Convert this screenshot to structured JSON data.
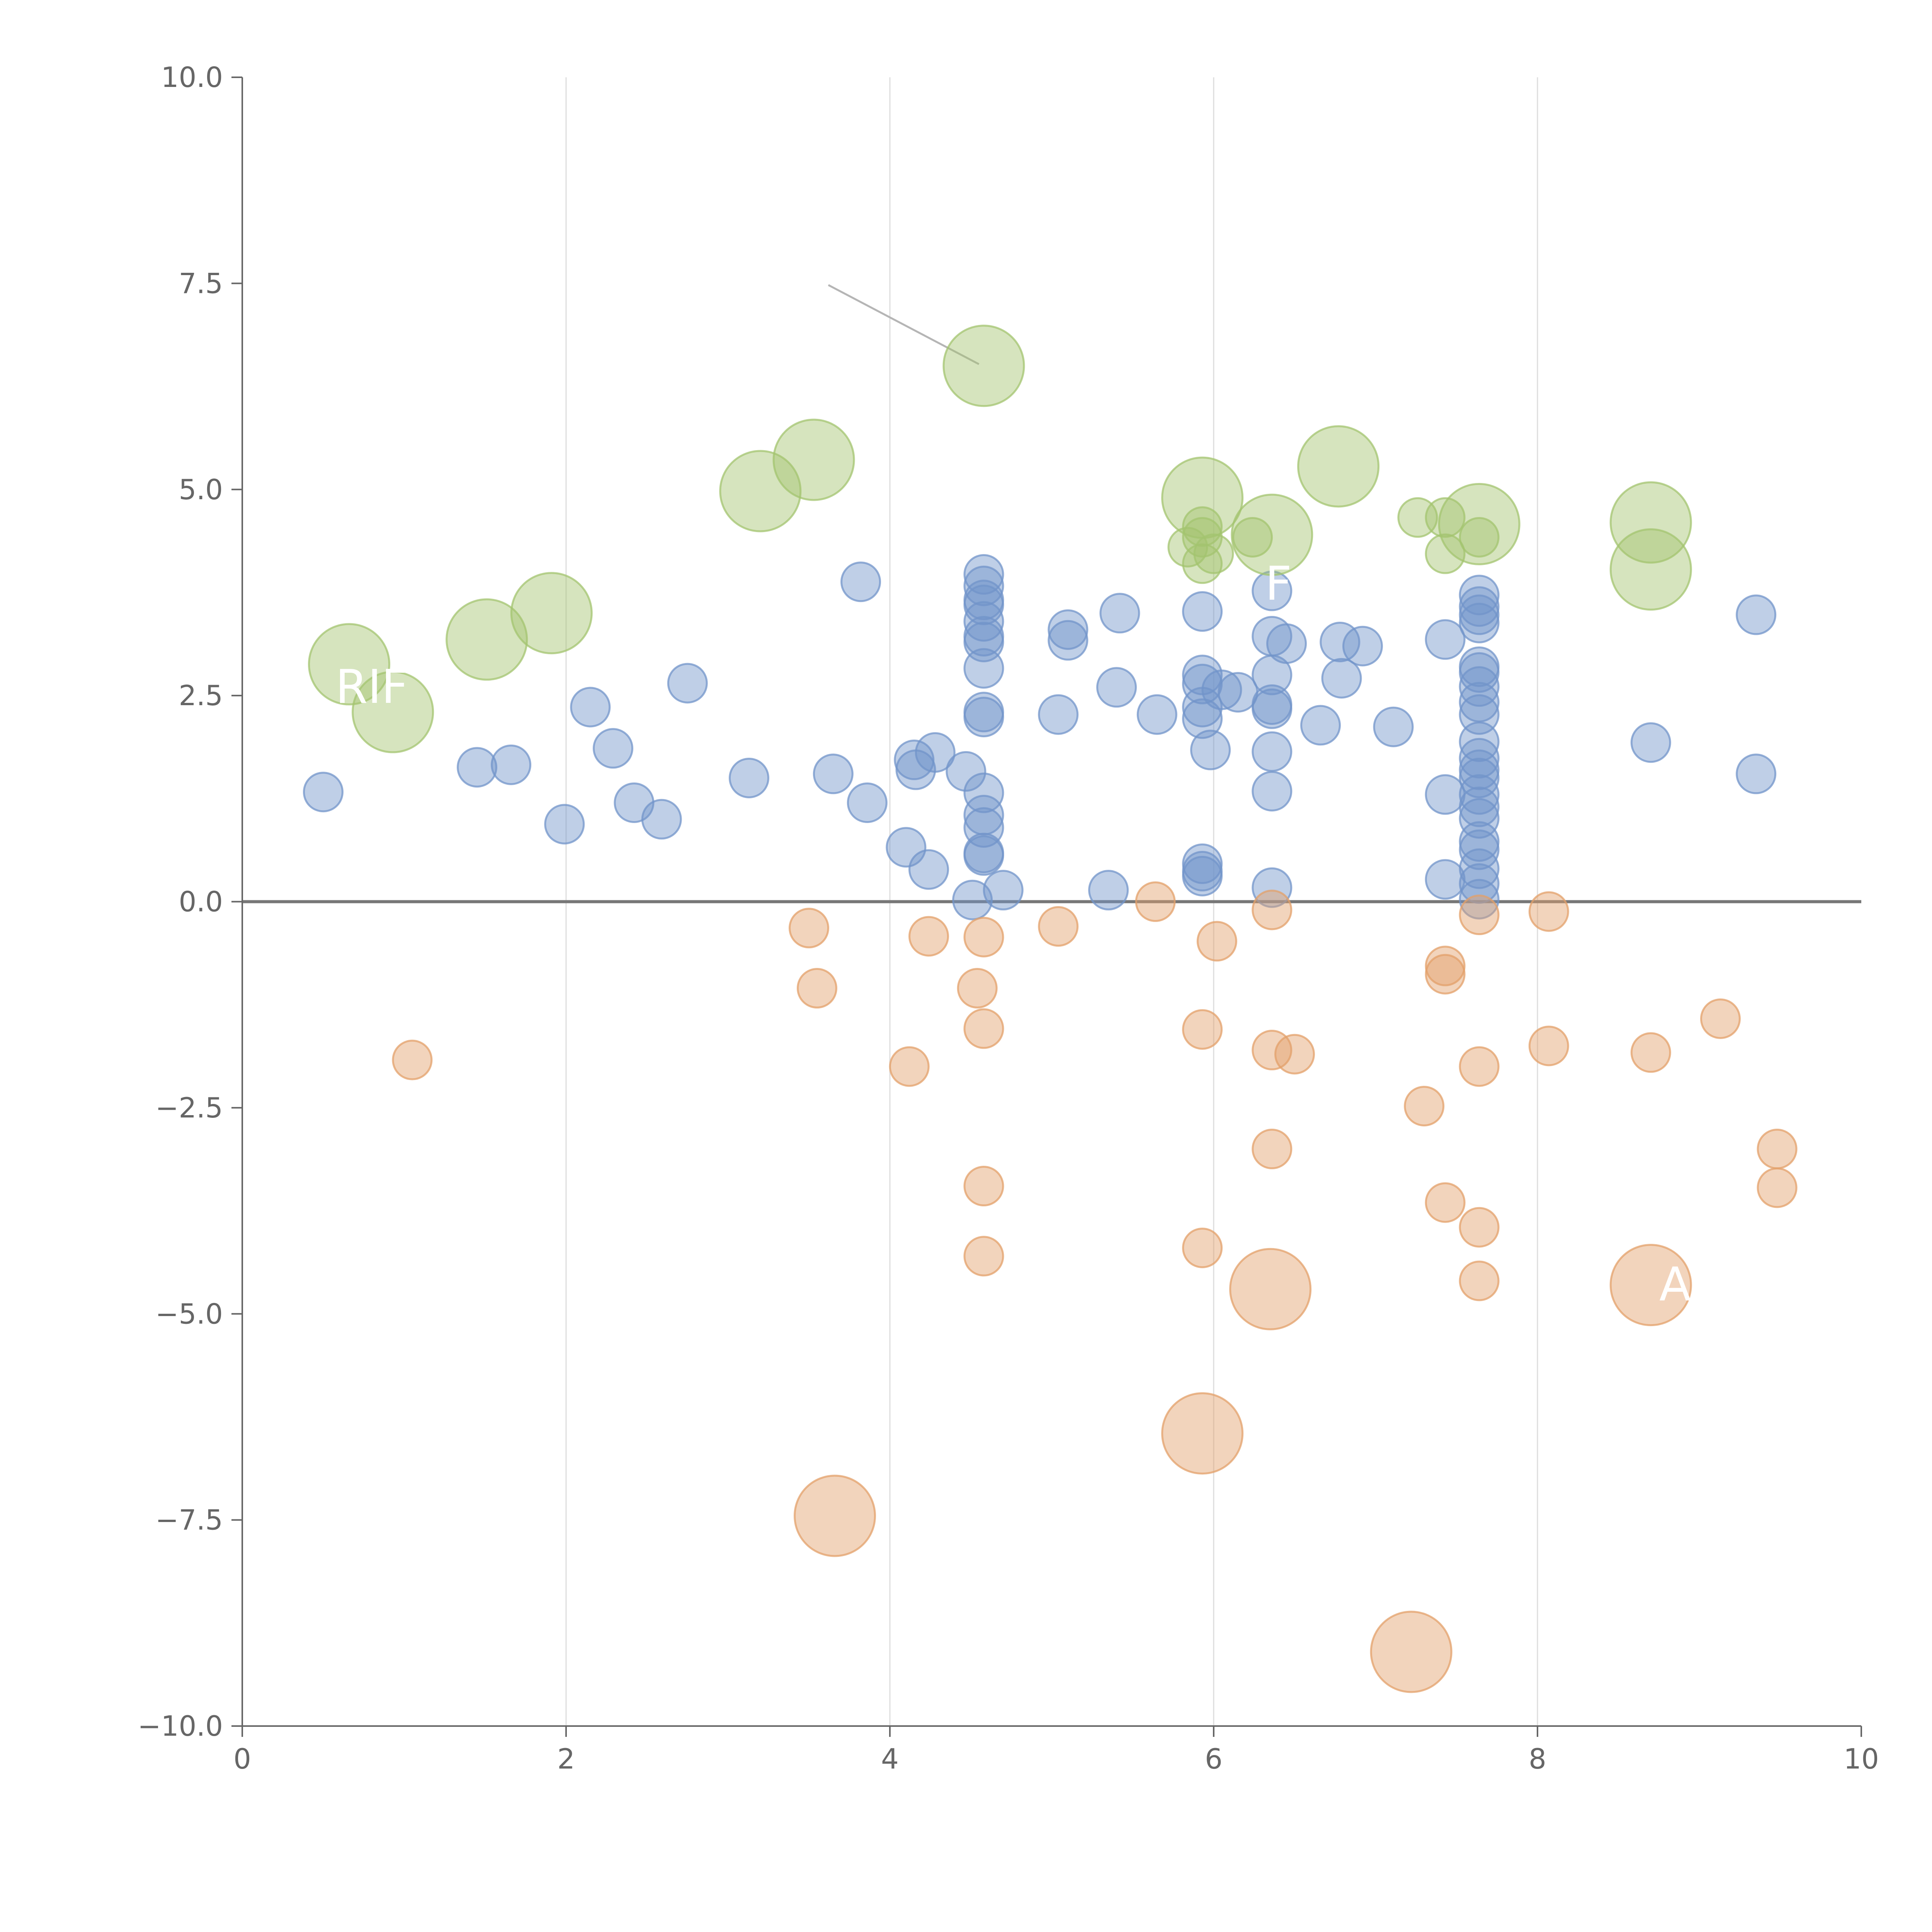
{
  "chart_data": {
    "type": "scatter",
    "title": "",
    "xlabel": "",
    "ylabel": "",
    "xlim": [
      0,
      10
    ],
    "ylim": [
      -10,
      10
    ],
    "x_ticks": [
      0,
      2,
      4,
      6,
      8,
      10
    ],
    "y_ticks": [
      10,
      7.5,
      5,
      2.5,
      0,
      -2.5,
      -5,
      -7.5,
      -10
    ],
    "x_tick_labels": [
      "0",
      "2",
      "4",
      "6",
      "8",
      "10"
    ],
    "y_tick_labels": [
      "10.0",
      "7.5",
      "5.0",
      "2.5",
      "0.0",
      "−2.5",
      "−5.0",
      "−7.5",
      "−10.0"
    ],
    "grid": "vertical",
    "zero_line": true,
    "legend": "none",
    "colors": {
      "blue": "#7294c9",
      "green": "#a3c46f",
      "orange": "#e3a06a",
      "axis": "#666666",
      "grid": "#dddddd",
      "zero_line": "#777777",
      "annotation_line": "#b5b5b5"
    },
    "size_scale": {
      "small": 1,
      "large": 2
    },
    "series": [
      {
        "name": "blue",
        "color": "#7294c9",
        "points": [
          {
            "x": 0.5,
            "y": 1.33,
            "s": 1
          },
          {
            "x": 1.45,
            "y": 1.63,
            "s": 1
          },
          {
            "x": 1.66,
            "y": 1.66,
            "s": 1
          },
          {
            "x": 1.99,
            "y": 0.94,
            "s": 1
          },
          {
            "x": 2.15,
            "y": 2.36,
            "s": 1
          },
          {
            "x": 2.29,
            "y": 1.86,
            "s": 1
          },
          {
            "x": 2.42,
            "y": 1.2,
            "s": 1
          },
          {
            "x": 2.59,
            "y": 1.0,
            "s": 1
          },
          {
            "x": 2.75,
            "y": 2.65,
            "s": 1
          },
          {
            "x": 3.13,
            "y": 1.5,
            "s": 1
          },
          {
            "x": 3.65,
            "y": 1.55,
            "s": 1
          },
          {
            "x": 3.82,
            "y": 3.88,
            "s": 1
          },
          {
            "x": 3.86,
            "y": 1.2,
            "s": 1
          },
          {
            "x": 4.1,
            "y": 0.66,
            "s": 1
          },
          {
            "x": 4.15,
            "y": 1.72,
            "s": 1
          },
          {
            "x": 4.16,
            "y": 1.6,
            "s": 1
          },
          {
            "x": 4.24,
            "y": 0.39,
            "s": 1
          },
          {
            "x": 4.28,
            "y": 1.81,
            "s": 1
          },
          {
            "x": 4.47,
            "y": 1.58,
            "s": 1
          },
          {
            "x": 4.51,
            "y": 0.02,
            "s": 1
          },
          {
            "x": 4.58,
            "y": 3.97,
            "s": 1
          },
          {
            "x": 4.58,
            "y": 3.83,
            "s": 1
          },
          {
            "x": 4.58,
            "y": 3.66,
            "s": 1
          },
          {
            "x": 4.58,
            "y": 3.6,
            "s": 1
          },
          {
            "x": 4.58,
            "y": 3.4,
            "s": 1
          },
          {
            "x": 4.58,
            "y": 3.22,
            "s": 1
          },
          {
            "x": 4.58,
            "y": 3.15,
            "s": 1
          },
          {
            "x": 4.58,
            "y": 2.83,
            "s": 1
          },
          {
            "x": 4.58,
            "y": 2.3,
            "s": 1
          },
          {
            "x": 4.58,
            "y": 2.24,
            "s": 1
          },
          {
            "x": 4.58,
            "y": 1.32,
            "s": 1
          },
          {
            "x": 4.58,
            "y": 1.05,
            "s": 1
          },
          {
            "x": 4.58,
            "y": 0.9,
            "s": 1
          },
          {
            "x": 4.58,
            "y": 0.59,
            "s": 1
          },
          {
            "x": 4.58,
            "y": 0.56,
            "s": 1
          },
          {
            "x": 4.7,
            "y": 0.14,
            "s": 1
          },
          {
            "x": 5.04,
            "y": 2.27,
            "s": 1
          },
          {
            "x": 5.1,
            "y": 3.3,
            "s": 1
          },
          {
            "x": 5.1,
            "y": 3.17,
            "s": 1
          },
          {
            "x": 5.35,
            "y": 0.14,
            "s": 1
          },
          {
            "x": 5.4,
            "y": 2.6,
            "s": 1
          },
          {
            "x": 5.42,
            "y": 3.5,
            "s": 1
          },
          {
            "x": 5.65,
            "y": 2.27,
            "s": 1
          },
          {
            "x": 5.93,
            "y": 3.52,
            "s": 1
          },
          {
            "x": 5.93,
            "y": 2.75,
            "s": 1
          },
          {
            "x": 5.93,
            "y": 2.64,
            "s": 1
          },
          {
            "x": 5.93,
            "y": 2.36,
            "s": 1
          },
          {
            "x": 5.93,
            "y": 2.22,
            "s": 1
          },
          {
            "x": 5.93,
            "y": 0.46,
            "s": 1
          },
          {
            "x": 5.93,
            "y": 0.37,
            "s": 1
          },
          {
            "x": 5.93,
            "y": 0.31,
            "s": 1
          },
          {
            "x": 5.98,
            "y": 1.84,
            "s": 1
          },
          {
            "x": 6.05,
            "y": 2.57,
            "s": 1
          },
          {
            "x": 6.15,
            "y": 2.54,
            "s": 1
          },
          {
            "x": 6.36,
            "y": 3.77,
            "s": 1
          },
          {
            "x": 6.36,
            "y": 3.22,
            "s": 1
          },
          {
            "x": 6.36,
            "y": 2.75,
            "s": 1
          },
          {
            "x": 6.36,
            "y": 2.39,
            "s": 1
          },
          {
            "x": 6.36,
            "y": 2.34,
            "s": 1
          },
          {
            "x": 6.36,
            "y": 1.82,
            "s": 1
          },
          {
            "x": 6.36,
            "y": 1.34,
            "s": 1
          },
          {
            "x": 6.36,
            "y": 0.17,
            "s": 1
          },
          {
            "x": 6.45,
            "y": 3.13,
            "s": 1
          },
          {
            "x": 6.66,
            "y": 2.14,
            "s": 1
          },
          {
            "x": 6.78,
            "y": 3.15,
            "s": 1
          },
          {
            "x": 6.79,
            "y": 2.71,
            "s": 1
          },
          {
            "x": 6.92,
            "y": 3.1,
            "s": 1
          },
          {
            "x": 7.11,
            "y": 2.12,
            "s": 1
          },
          {
            "x": 7.43,
            "y": 3.18,
            "s": 1
          },
          {
            "x": 7.43,
            "y": 1.3,
            "s": 1
          },
          {
            "x": 7.43,
            "y": 0.27,
            "s": 1
          },
          {
            "x": 7.64,
            "y": 3.72,
            "s": 1
          },
          {
            "x": 7.64,
            "y": 3.58,
            "s": 1
          },
          {
            "x": 7.64,
            "y": 3.48,
            "s": 1
          },
          {
            "x": 7.64,
            "y": 3.38,
            "s": 1
          },
          {
            "x": 7.64,
            "y": 2.85,
            "s": 1
          },
          {
            "x": 7.64,
            "y": 2.78,
            "s": 1
          },
          {
            "x": 7.64,
            "y": 2.61,
            "s": 1
          },
          {
            "x": 7.64,
            "y": 2.42,
            "s": 1
          },
          {
            "x": 7.64,
            "y": 2.27,
            "s": 1
          },
          {
            "x": 7.64,
            "y": 1.94,
            "s": 1
          },
          {
            "x": 7.64,
            "y": 1.74,
            "s": 1
          },
          {
            "x": 7.64,
            "y": 1.6,
            "s": 1
          },
          {
            "x": 7.64,
            "y": 1.5,
            "s": 1
          },
          {
            "x": 7.64,
            "y": 1.3,
            "s": 1
          },
          {
            "x": 7.64,
            "y": 1.15,
            "s": 1
          },
          {
            "x": 7.64,
            "y": 1.01,
            "s": 1
          },
          {
            "x": 7.64,
            "y": 0.73,
            "s": 1
          },
          {
            "x": 7.64,
            "y": 0.63,
            "s": 1
          },
          {
            "x": 7.64,
            "y": 0.4,
            "s": 1
          },
          {
            "x": 7.64,
            "y": 0.22,
            "s": 1
          },
          {
            "x": 7.64,
            "y": 0.03,
            "s": 1
          },
          {
            "x": 8.7,
            "y": 1.93,
            "s": 1
          },
          {
            "x": 9.35,
            "y": 3.48,
            "s": 1
          },
          {
            "x": 9.35,
            "y": 1.55,
            "s": 1
          }
        ]
      },
      {
        "name": "green",
        "color": "#a3c46f",
        "points": [
          {
            "x": 0.66,
            "y": 2.88,
            "s": 2
          },
          {
            "x": 0.93,
            "y": 2.3,
            "s": 2
          },
          {
            "x": 1.51,
            "y": 3.18,
            "s": 2
          },
          {
            "x": 1.91,
            "y": 3.5,
            "s": 2
          },
          {
            "x": 3.2,
            "y": 4.98,
            "s": 2
          },
          {
            "x": 3.53,
            "y": 5.36,
            "s": 2
          },
          {
            "x": 4.58,
            "y": 6.5,
            "s": 2
          },
          {
            "x": 5.84,
            "y": 4.3,
            "s": 1
          },
          {
            "x": 5.93,
            "y": 4.9,
            "s": 2
          },
          {
            "x": 5.93,
            "y": 4.55,
            "s": 1
          },
          {
            "x": 5.93,
            "y": 4.42,
            "s": 1
          },
          {
            "x": 5.93,
            "y": 4.1,
            "s": 1
          },
          {
            "x": 6.0,
            "y": 4.22,
            "s": 1
          },
          {
            "x": 6.24,
            "y": 4.42,
            "s": 1
          },
          {
            "x": 6.36,
            "y": 4.45,
            "s": 2
          },
          {
            "x": 6.77,
            "y": 5.28,
            "s": 2
          },
          {
            "x": 7.26,
            "y": 4.66,
            "s": 1
          },
          {
            "x": 7.43,
            "y": 4.66,
            "s": 1
          },
          {
            "x": 7.43,
            "y": 4.22,
            "s": 1
          },
          {
            "x": 7.64,
            "y": 4.58,
            "s": 2
          },
          {
            "x": 7.64,
            "y": 4.42,
            "s": 1
          },
          {
            "x": 8.7,
            "y": 4.6,
            "s": 2
          },
          {
            "x": 8.7,
            "y": 4.03,
            "s": 2
          }
        ]
      },
      {
        "name": "orange",
        "color": "#e3a06a",
        "points": [
          {
            "x": 1.05,
            "y": -1.92,
            "s": 1
          },
          {
            "x": 3.5,
            "y": -0.32,
            "s": 1
          },
          {
            "x": 3.55,
            "y": -1.05,
            "s": 1
          },
          {
            "x": 3.66,
            "y": -7.45,
            "s": 2
          },
          {
            "x": 4.12,
            "y": -2.0,
            "s": 1
          },
          {
            "x": 4.24,
            "y": -0.42,
            "s": 1
          },
          {
            "x": 4.54,
            "y": -1.05,
            "s": 1
          },
          {
            "x": 4.58,
            "y": -0.43,
            "s": 1
          },
          {
            "x": 4.58,
            "y": -1.54,
            "s": 1
          },
          {
            "x": 4.58,
            "y": -3.45,
            "s": 1
          },
          {
            "x": 4.58,
            "y": -4.3,
            "s": 1
          },
          {
            "x": 5.04,
            "y": -0.3,
            "s": 1
          },
          {
            "x": 5.64,
            "y": 0.0,
            "s": 1
          },
          {
            "x": 5.93,
            "y": -1.55,
            "s": 1
          },
          {
            "x": 5.93,
            "y": -4.2,
            "s": 1
          },
          {
            "x": 5.93,
            "y": -6.45,
            "s": 2
          },
          {
            "x": 6.02,
            "y": -0.48,
            "s": 1
          },
          {
            "x": 6.35,
            "y": -4.7,
            "s": 2
          },
          {
            "x": 6.36,
            "y": -0.1,
            "s": 1
          },
          {
            "x": 6.36,
            "y": -1.8,
            "s": 1
          },
          {
            "x": 6.36,
            "y": -3.0,
            "s": 1
          },
          {
            "x": 6.5,
            "y": -1.85,
            "s": 1
          },
          {
            "x": 7.22,
            "y": -9.1,
            "s": 2
          },
          {
            "x": 7.3,
            "y": -2.48,
            "s": 1
          },
          {
            "x": 7.43,
            "y": -0.78,
            "s": 1
          },
          {
            "x": 7.43,
            "y": -0.88,
            "s": 1
          },
          {
            "x": 7.43,
            "y": -3.65,
            "s": 1
          },
          {
            "x": 7.64,
            "y": -0.16,
            "s": 1
          },
          {
            "x": 7.64,
            "y": -2.0,
            "s": 1
          },
          {
            "x": 7.64,
            "y": -3.95,
            "s": 1
          },
          {
            "x": 7.64,
            "y": -4.6,
            "s": 1
          },
          {
            "x": 8.07,
            "y": -0.12,
            "s": 1
          },
          {
            "x": 8.07,
            "y": -1.75,
            "s": 1
          },
          {
            "x": 8.7,
            "y": -1.83,
            "s": 1
          },
          {
            "x": 8.7,
            "y": -4.65,
            "s": 2
          },
          {
            "x": 9.13,
            "y": -1.42,
            "s": 1
          },
          {
            "x": 9.48,
            "y": -3.0,
            "s": 1
          },
          {
            "x": 9.48,
            "y": -3.47,
            "s": 1
          }
        ]
      }
    ],
    "annotations": [
      {
        "text": "RIF",
        "x": 0.8,
        "y": 2.6
      },
      {
        "text": "F",
        "x": 6.4,
        "y": 3.85
      },
      {
        "text": "A",
        "x": 8.85,
        "y": -4.65
      }
    ],
    "annotation_lines": [
      {
        "x1": 3.62,
        "y1": 7.48,
        "x2": 4.55,
        "y2": 6.52
      }
    ]
  }
}
